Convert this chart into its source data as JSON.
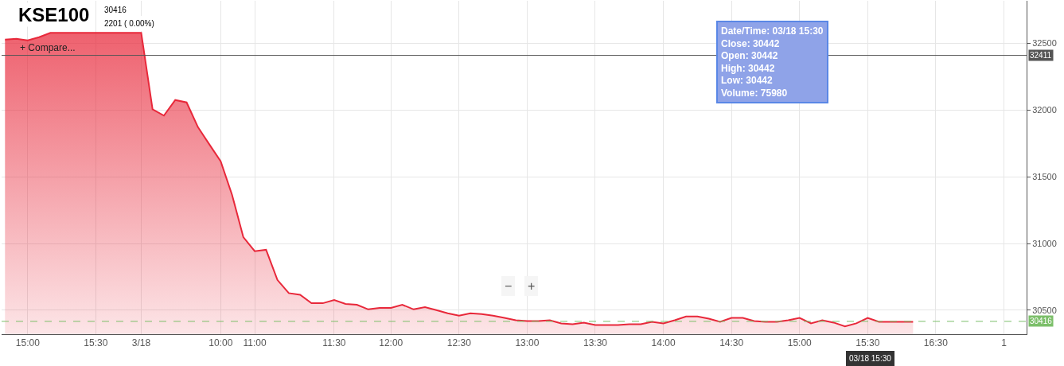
{
  "chart_data": {
    "type": "area",
    "title": "KSE100",
    "categories": [
      null,
      null,
      "15:00",
      null,
      null,
      null,
      null,
      null,
      "15:30",
      null,
      null,
      null,
      "3/18",
      null,
      null,
      null,
      null,
      null,
      null,
      "10:00",
      null,
      null,
      "11:00",
      null,
      null,
      null,
      null,
      null,
      null,
      "11:30",
      null,
      null,
      null,
      null,
      "12:00",
      null,
      null,
      null,
      null,
      null,
      "12:30",
      null,
      null,
      null,
      null,
      null,
      "13:00",
      null,
      null,
      null,
      null,
      null,
      "13:30",
      null,
      null,
      null,
      null,
      null,
      "14:00",
      null,
      null,
      null,
      null,
      null,
      "14:30",
      null,
      null,
      null,
      null,
      null,
      "15:00",
      null,
      null,
      null,
      null,
      null,
      "15:30",
      null,
      null,
      null,
      null,
      null,
      "16:30",
      null,
      null,
      null,
      null,
      null,
      "1",
      null,
      null
    ],
    "series": [
      {
        "color": "#e8283a",
        "values": [
          32529,
          32535,
          32523,
          32547,
          32580,
          32580,
          32580,
          32580,
          32580,
          32580,
          32580,
          32580,
          32580,
          32006,
          31959,
          32076,
          32058,
          31872,
          31744,
          31616,
          31366,
          31047,
          30942,
          30953,
          30727,
          30628,
          30616,
          30552,
          30552,
          30576,
          30547,
          30541,
          30506,
          30517,
          30517,
          30541,
          30506,
          30523,
          30500,
          30477,
          30459,
          30477,
          30471,
          30459,
          30442,
          30424,
          30419,
          30419,
          30424,
          30401,
          30395,
          30407,
          30389,
          30389,
          30389,
          30395,
          30395,
          30413,
          30401,
          30424,
          30453,
          30453,
          30436,
          30413,
          30442,
          30442,
          30419,
          30413,
          30413,
          30424,
          30442,
          30401,
          30424,
          30407,
          30378,
          30401,
          30442,
          30413,
          30413,
          30413,
          30413,
          null,
          null,
          null,
          null,
          null,
          null,
          null,
          null,
          null,
          null
        ]
      }
    ],
    "ylim": [
      30320,
      32820
    ],
    "yticks": [
      30500,
      31000,
      31500,
      32000,
      32500
    ],
    "grid": true,
    "legend": false,
    "ref_lines": [
      {
        "axis": "y",
        "value": 32411,
        "label": "32411",
        "color": "#555555",
        "line_style": "solid"
      },
      {
        "axis": "y",
        "value": 30416,
        "label": "30416",
        "color": "#7cbf6a",
        "line_style": "dashed"
      }
    ],
    "annotations": [
      "30416",
      "2201 ( 0.00%)",
      "+ Compare...",
      "Date/Time: 03/18 15:30\nClose: 30442\nOpen: 30442\nHigh: 30442\nLow: 30442\nVolume: 75980",
      "−",
      "+",
      "03/18 15:30"
    ]
  }
}
